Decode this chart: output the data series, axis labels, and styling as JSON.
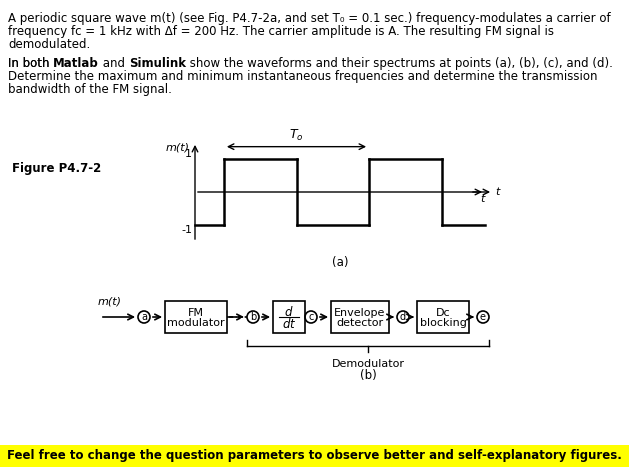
{
  "title_text": "A periodic square wave m(t) (see Fig. P4.7-2a, and set T₀ = 0.1 sec.) frequency-modulates a carrier of\nfrequency fᴄ = 1 kHz with Δf = 200 Hz. The carrier amplitude is A. The resulting FM signal is\ndemodulated.",
  "body_text": "In both Matlab and Simulink show the waveforms and their spectrums at points (a), (b), (c), and (d).\nDetermine the maximum and minimum instantaneous frequencies and determine the transmission\nbandwidth of the FM signal.",
  "figure_label": "Figure P4.7-2",
  "footer_text": "Feel free to change the question parameters to observe better and self-explanatory figures.",
  "footer_bg": "#FFFF00",
  "bg_color": "#FFFFFF",
  "text_color": "#000000"
}
